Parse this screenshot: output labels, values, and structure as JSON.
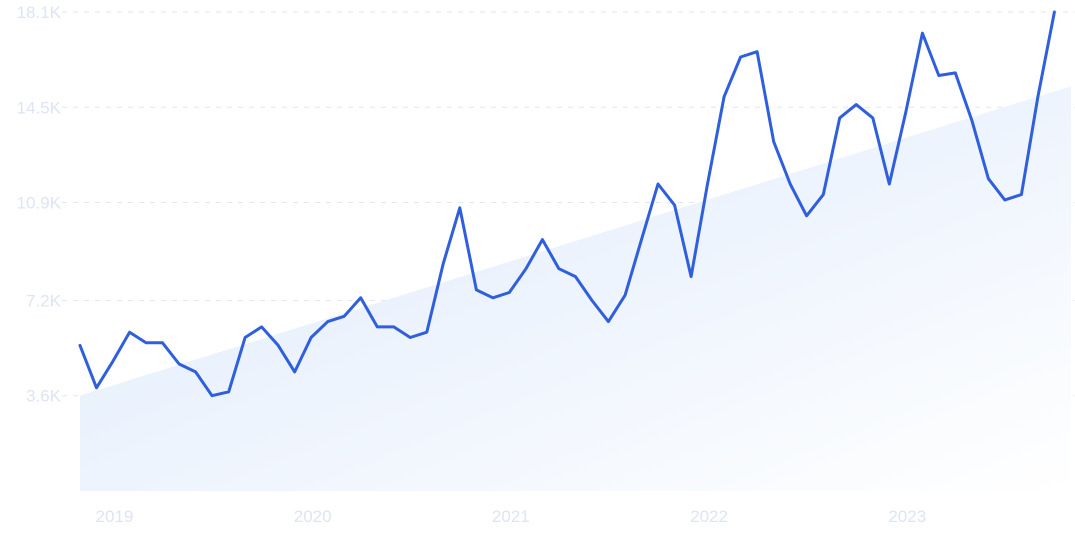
{
  "chart_data": {
    "type": "line",
    "title": "",
    "xlabel": "",
    "ylabel": "",
    "y_tick_labels": [
      "3.6K",
      "7.2K",
      "10.9K",
      "14.5K",
      "18.1K"
    ],
    "y_tick_values": [
      3600,
      7200,
      10900,
      14500,
      18100
    ],
    "x_tick_labels": [
      "2019",
      "2020",
      "2021",
      "2022",
      "2023"
    ],
    "x_tick_values": [
      2019.0,
      2020.0,
      2021.0,
      2022.0,
      2023.0
    ],
    "xlim": [
      2018.917,
      2023.917
    ],
    "ylim": [
      0,
      18100
    ],
    "grid": true,
    "series": [
      {
        "values": [
          [
            2018.917,
            5500
          ],
          [
            2019.0,
            3900
          ],
          [
            2019.083,
            4900
          ],
          [
            2019.167,
            6000
          ],
          [
            2019.25,
            5600
          ],
          [
            2019.333,
            5600
          ],
          [
            2019.417,
            4800
          ],
          [
            2019.5,
            4500
          ],
          [
            2019.583,
            3600
          ],
          [
            2019.667,
            3750
          ],
          [
            2019.75,
            5800
          ],
          [
            2019.833,
            6200
          ],
          [
            2019.917,
            5500
          ],
          [
            2020.0,
            4500
          ],
          [
            2020.083,
            5800
          ],
          [
            2020.167,
            6400
          ],
          [
            2020.25,
            6600
          ],
          [
            2020.333,
            7300
          ],
          [
            2020.417,
            6200
          ],
          [
            2020.5,
            6200
          ],
          [
            2020.583,
            5800
          ],
          [
            2020.667,
            6000
          ],
          [
            2020.75,
            8600
          ],
          [
            2020.833,
            10700
          ],
          [
            2020.917,
            7600
          ],
          [
            2021.0,
            7300
          ],
          [
            2021.083,
            7500
          ],
          [
            2021.167,
            8400
          ],
          [
            2021.25,
            9500
          ],
          [
            2021.333,
            8400
          ],
          [
            2021.417,
            8100
          ],
          [
            2021.5,
            7200
          ],
          [
            2021.583,
            6400
          ],
          [
            2021.667,
            7400
          ],
          [
            2021.75,
            9500
          ],
          [
            2021.833,
            11600
          ],
          [
            2021.917,
            10800
          ],
          [
            2022.0,
            8100
          ],
          [
            2022.083,
            11600
          ],
          [
            2022.167,
            14900
          ],
          [
            2022.25,
            16400
          ],
          [
            2022.333,
            16600
          ],
          [
            2022.417,
            13200
          ],
          [
            2022.5,
            11600
          ],
          [
            2022.583,
            10400
          ],
          [
            2022.667,
            11200
          ],
          [
            2022.75,
            14100
          ],
          [
            2022.833,
            14600
          ],
          [
            2022.917,
            14100
          ],
          [
            2023.0,
            11600
          ],
          [
            2023.083,
            14300
          ],
          [
            2023.167,
            17300
          ],
          [
            2023.25,
            15700
          ],
          [
            2023.333,
            15800
          ],
          [
            2023.417,
            14000
          ],
          [
            2023.5,
            11800
          ],
          [
            2023.583,
            11000
          ],
          [
            2023.667,
            11200
          ],
          [
            2023.75,
            14900
          ],
          [
            2023.833,
            18100
          ]
        ]
      }
    ],
    "trend": {
      "start": [
        2018.917,
        3600
      ],
      "end": [
        2023.833,
        15100
      ]
    },
    "colors": {
      "line": "#2f5fdc",
      "grid": "#e1e6f2",
      "tick_label": "#dde4f5",
      "trend_fill_strong": "#dce9fb",
      "trend_fill_light": "#ffffff"
    }
  }
}
